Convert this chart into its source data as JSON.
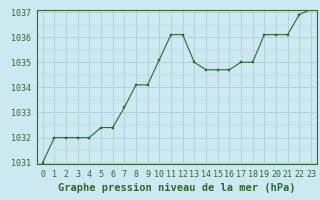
{
  "x": [
    0,
    1,
    2,
    3,
    4,
    5,
    6,
    7,
    8,
    9,
    10,
    11,
    12,
    13,
    14,
    15,
    16,
    17,
    18,
    19,
    20,
    21,
    22,
    23
  ],
  "y": [
    1031.0,
    1032.0,
    1032.0,
    1032.0,
    1032.0,
    1032.4,
    1032.4,
    1033.2,
    1034.1,
    1034.1,
    1035.1,
    1036.1,
    1036.1,
    1035.0,
    1034.7,
    1034.7,
    1034.7,
    1035.0,
    1035.0,
    1036.1,
    1036.1,
    1036.1,
    1036.9,
    1037.1
  ],
  "line_color": "#2d6a2d",
  "marker_color": "#2d6a2d",
  "bg_color": "#cce8f0",
  "grid_color_major": "#aac8d4",
  "grid_color_minor": "#bcd8e0",
  "title": "Graphe pression niveau de la mer (hPa)",
  "ylim": [
    1031,
    1037
  ],
  "xlim": [
    -0.5,
    23.5
  ],
  "yticks": [
    1031,
    1032,
    1033,
    1034,
    1035,
    1036,
    1037
  ],
  "xticks": [
    0,
    1,
    2,
    3,
    4,
    5,
    6,
    7,
    8,
    9,
    10,
    11,
    12,
    13,
    14,
    15,
    16,
    17,
    18,
    19,
    20,
    21,
    22,
    23
  ],
  "title_fontsize": 7.5,
  "tick_fontsize": 6.0
}
